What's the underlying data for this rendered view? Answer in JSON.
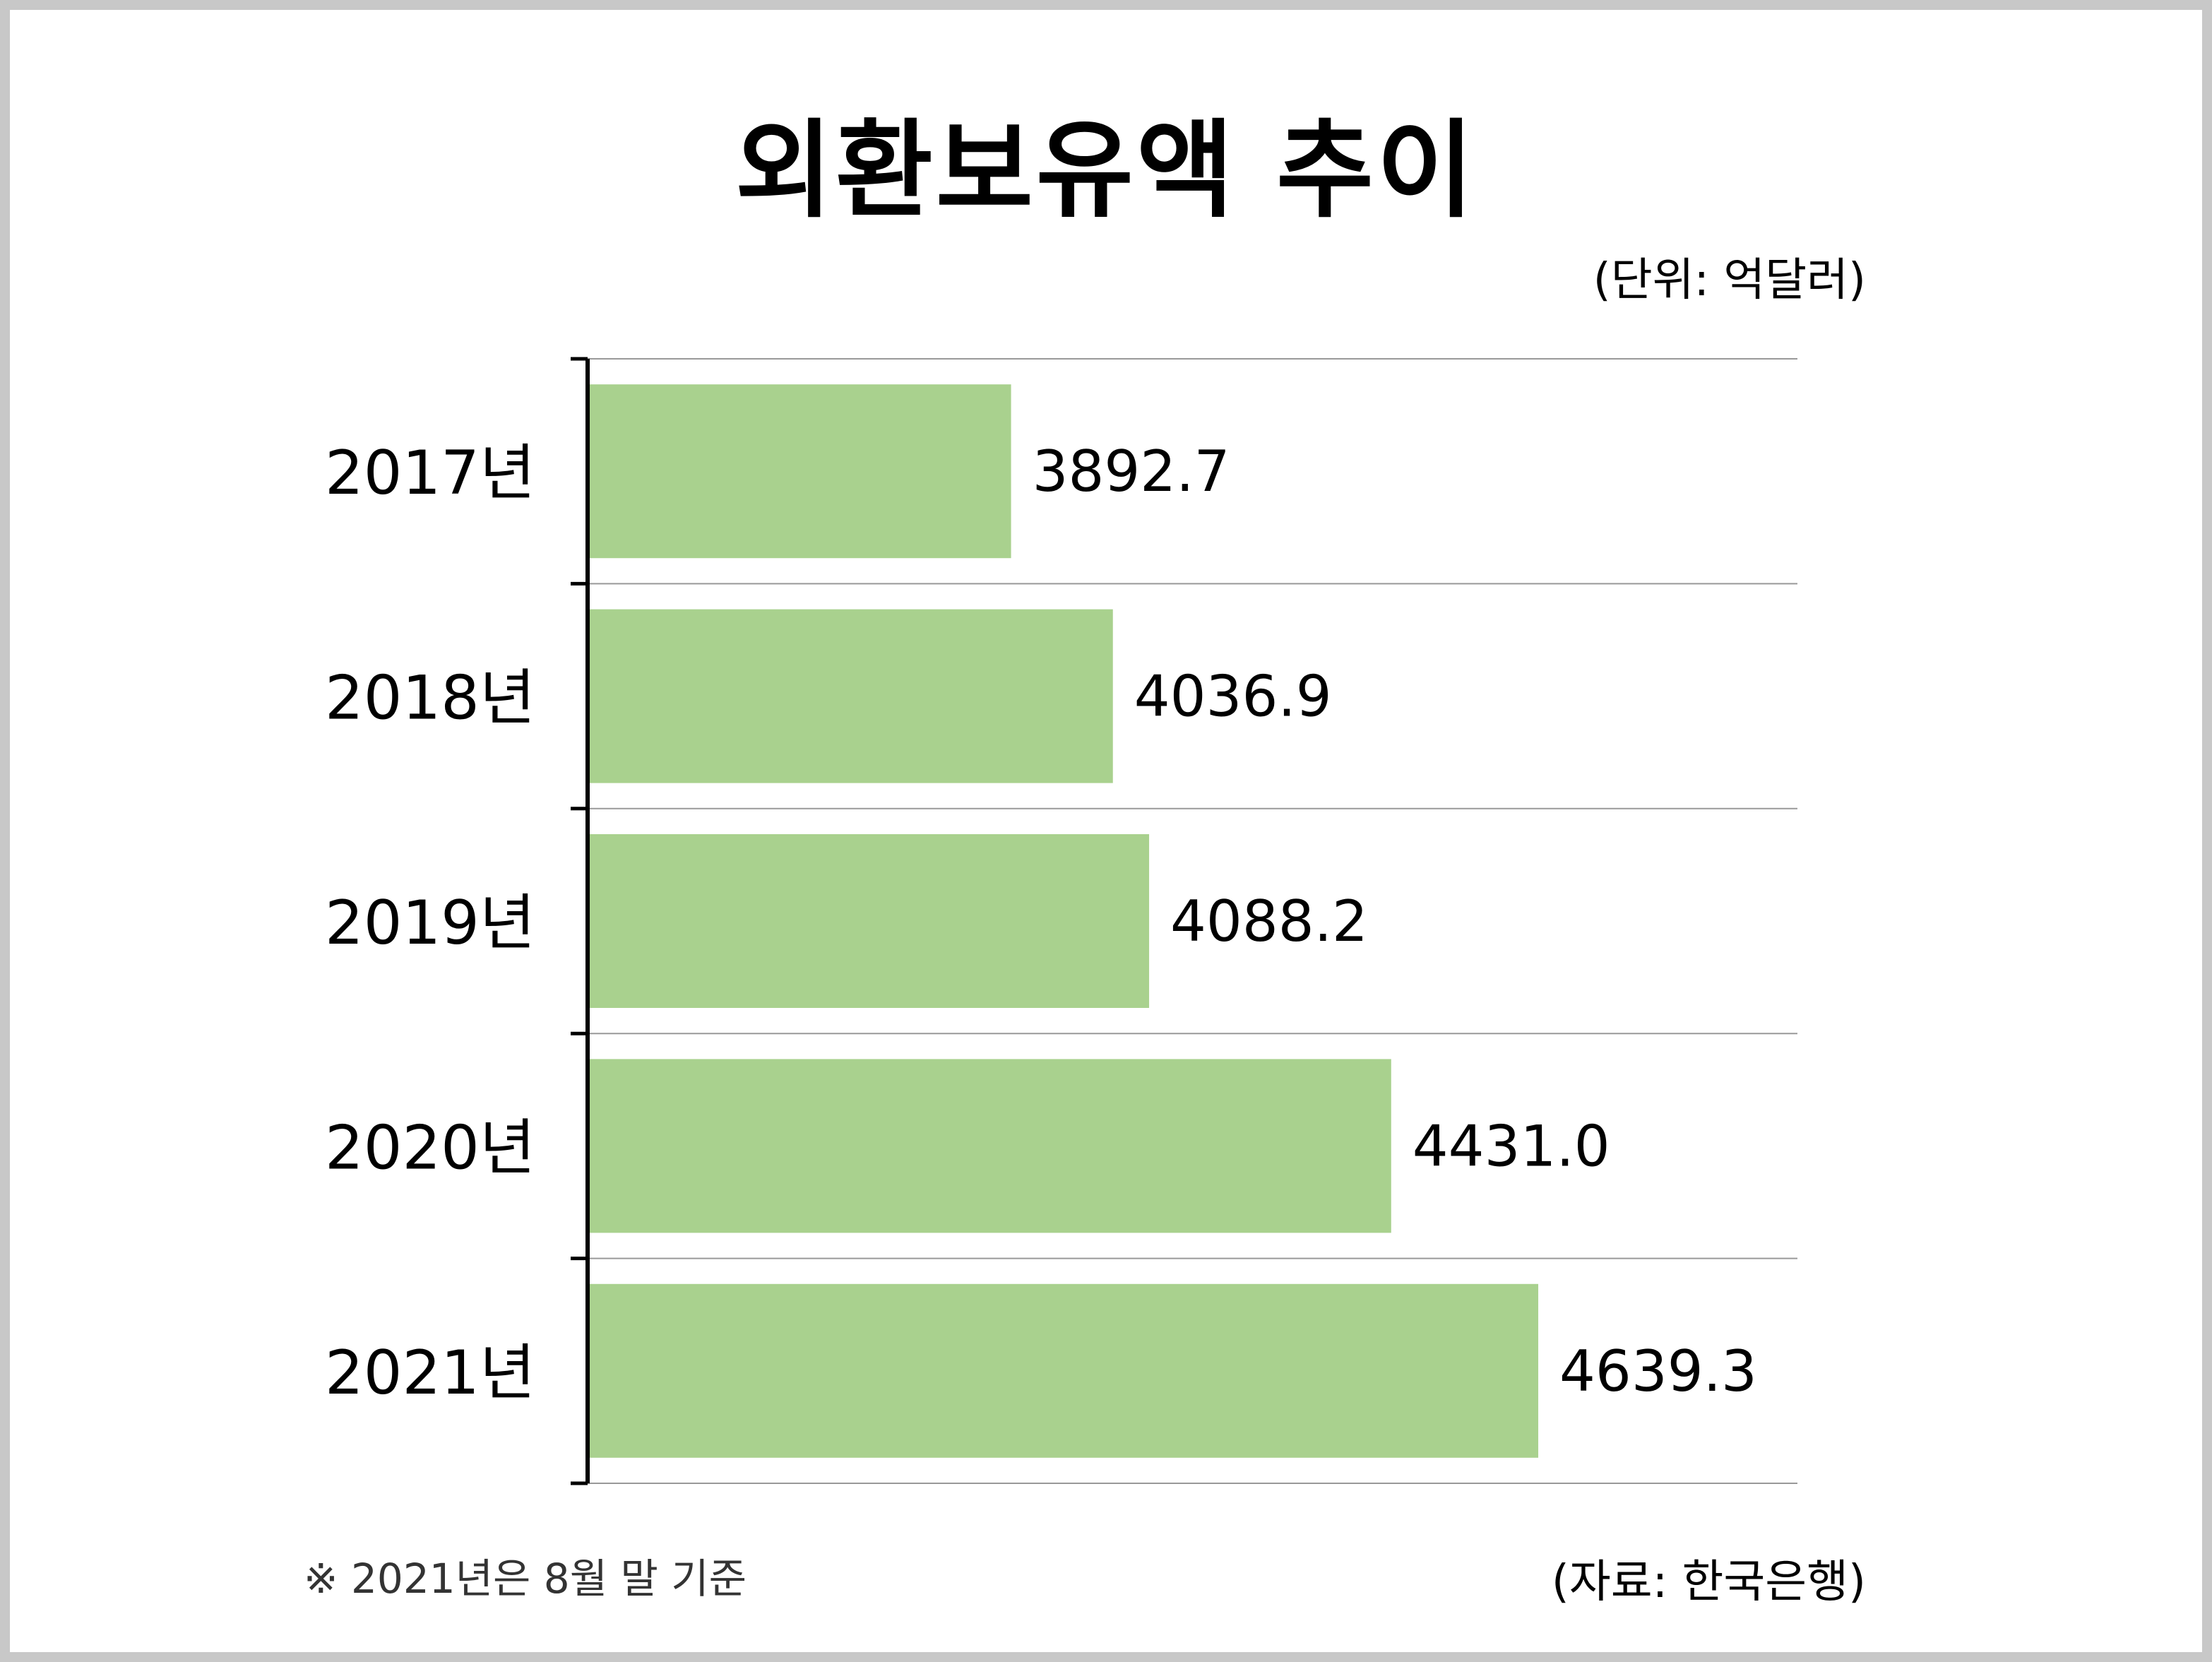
{
  "title": "외환보유액 추이",
  "unit_note": "(단위: 억달러)",
  "footnote": "※ 2021년은 8월 말 기준",
  "source": "(자료: 한국은행)",
  "colors": {
    "bar": "#a9d18e",
    "axis": "#000000",
    "grid": "#999999",
    "frame": "#c8c8c8"
  },
  "chart_data": {
    "type": "bar",
    "orientation": "horizontal",
    "categories": [
      "2017년",
      "2018년",
      "2019년",
      "2020년",
      "2021년"
    ],
    "values": [
      3892.7,
      4036.9,
      4088.2,
      4431.0,
      4639.3
    ],
    "value_labels": [
      "3892.7",
      "4036.9",
      "4088.2",
      "4431.0",
      "4639.3"
    ],
    "grid": true
  }
}
